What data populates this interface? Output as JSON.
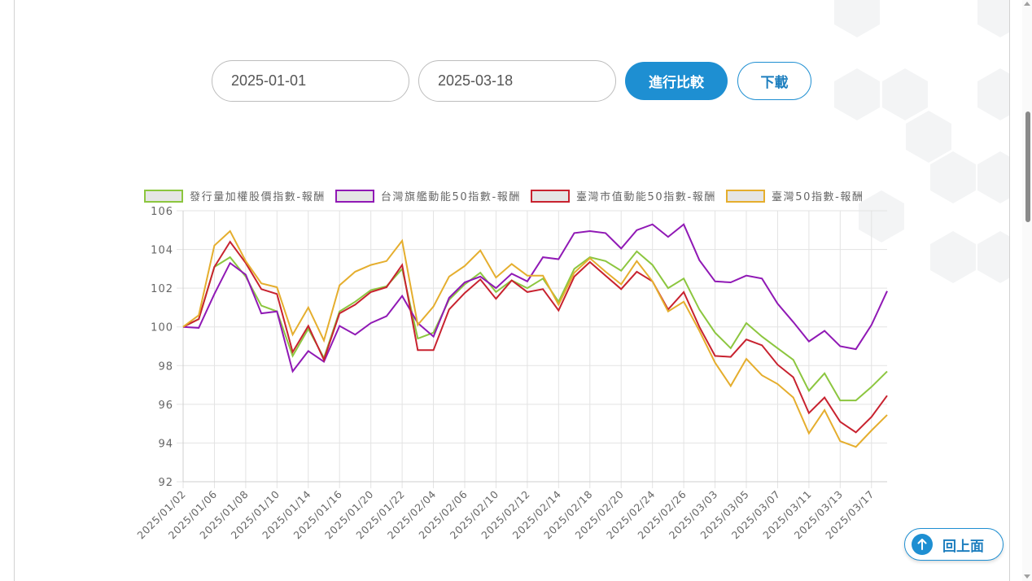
{
  "controls": {
    "start_date": "2025-01-01",
    "end_date": "2025-03-18",
    "compare_label": "進行比較",
    "download_label": "下載"
  },
  "back_to_top": {
    "label": "回上面",
    "icon": "arrow-up-icon"
  },
  "colors": {
    "accent": "#1e8fd2",
    "green": "#8cc63f",
    "purple": "#9019b5",
    "red": "#c8222f",
    "gold": "#e5ae2e"
  },
  "chart_data": {
    "type": "line",
    "title": "",
    "xlabel": "",
    "ylabel": "",
    "ylim": [
      92,
      106
    ],
    "yticks": [
      106,
      104,
      102,
      100,
      98,
      96,
      94,
      92
    ],
    "grid": true,
    "legend_position": "top",
    "x": [
      "2025/01/02",
      "2025/01/03",
      "2025/01/06",
      "2025/01/07",
      "2025/01/08",
      "2025/01/09",
      "2025/01/10",
      "2025/01/13",
      "2025/01/14",
      "2025/01/15",
      "2025/01/16",
      "2025/01/17",
      "2025/01/20",
      "2025/01/21",
      "2025/01/22",
      "2025/02/03",
      "2025/02/04",
      "2025/02/05",
      "2025/02/06",
      "2025/02/07",
      "2025/02/10",
      "2025/02/11",
      "2025/02/12",
      "2025/02/13",
      "2025/02/14",
      "2025/02/17",
      "2025/02/18",
      "2025/02/19",
      "2025/02/20",
      "2025/02/21",
      "2025/02/24",
      "2025/02/25",
      "2025/02/26",
      "2025/02/27",
      "2025/03/03",
      "2025/03/04",
      "2025/03/05",
      "2025/03/06",
      "2025/03/07",
      "2025/03/10",
      "2025/03/11",
      "2025/03/12",
      "2025/03/13",
      "2025/03/14",
      "2025/03/17",
      "2025/03/18"
    ],
    "xtick_labels": [
      "2025/01/02",
      "2025/01/06",
      "2025/01/08",
      "2025/01/10",
      "2025/01/14",
      "2025/01/16",
      "2025/01/20",
      "2025/01/22",
      "2025/02/04",
      "2025/02/06",
      "2025/02/10",
      "2025/02/12",
      "2025/02/14",
      "2025/02/18",
      "2025/02/20",
      "2025/02/24",
      "2025/02/26",
      "2025/03/03",
      "2025/03/05",
      "2025/03/07",
      "2025/03/11",
      "2025/03/13",
      "2025/03/17"
    ],
    "series": [
      {
        "name": "發行量加權股價指數-報酬",
        "color": "#8cc63f",
        "values": [
          100,
          100.4,
          103.1,
          103.6,
          102.6,
          101.1,
          100.8,
          98.5,
          99.9,
          98.4,
          100.8,
          101.3,
          101.9,
          102.1,
          103.0,
          99.4,
          99.7,
          101.4,
          102.2,
          102.8,
          101.8,
          102.4,
          102.0,
          102.5,
          101.3,
          103.0,
          103.6,
          103.4,
          102.9,
          103.9,
          103.2,
          102.0,
          102.5,
          100.9,
          99.7,
          98.9,
          100.2,
          99.5,
          98.9,
          98.3,
          96.7,
          97.6,
          96.2,
          96.2,
          96.9,
          97.7
        ]
      },
      {
        "name": "台灣旗艦動能50指數-報酬",
        "color": "#9019b5",
        "values": [
          100,
          99.95,
          101.7,
          103.3,
          102.7,
          100.7,
          100.8,
          97.7,
          98.75,
          98.2,
          100.05,
          99.6,
          100.2,
          100.55,
          101.6,
          100.2,
          99.5,
          101.5,
          102.3,
          102.6,
          102.0,
          102.75,
          102.35,
          103.6,
          103.5,
          104.85,
          104.95,
          104.85,
          104.05,
          105.0,
          105.3,
          104.65,
          105.3,
          103.45,
          102.35,
          102.3,
          102.65,
          102.5,
          101.2,
          100.25,
          99.25,
          99.8,
          99.0,
          98.85,
          100.1,
          101.85
        ]
      },
      {
        "name": "臺灣市值動能50指數-報酬",
        "color": "#c8222f",
        "values": [
          100,
          100.4,
          103.1,
          104.4,
          103.3,
          101.95,
          101.7,
          98.7,
          100.05,
          98.3,
          100.7,
          101.15,
          101.8,
          102.05,
          103.2,
          98.8,
          98.8,
          100.9,
          101.75,
          102.45,
          101.45,
          102.4,
          101.8,
          101.95,
          100.85,
          102.6,
          103.35,
          102.65,
          101.95,
          102.85,
          102.35,
          100.9,
          101.8,
          100.0,
          98.5,
          98.45,
          99.35,
          99.05,
          98.05,
          97.4,
          95.55,
          96.35,
          95.1,
          94.55,
          95.35,
          96.45
        ]
      },
      {
        "name": "臺灣50指數-報酬",
        "color": "#e5ae2e",
        "values": [
          100,
          100.6,
          104.2,
          104.95,
          103.4,
          102.25,
          102.05,
          99.6,
          101.0,
          99.3,
          102.15,
          102.85,
          103.2,
          103.4,
          104.45,
          100.1,
          101.05,
          102.6,
          103.15,
          103.95,
          102.55,
          103.25,
          102.65,
          102.65,
          101.15,
          102.8,
          103.55,
          102.85,
          102.2,
          103.4,
          102.35,
          100.8,
          101.3,
          99.8,
          98.15,
          96.95,
          98.35,
          97.5,
          97.05,
          96.35,
          94.5,
          95.7,
          94.1,
          93.8,
          94.65,
          95.45
        ]
      }
    ]
  }
}
